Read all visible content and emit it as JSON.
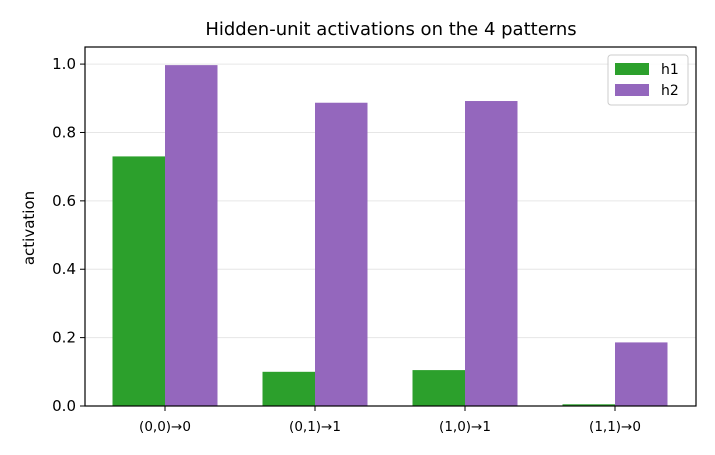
{
  "chart_data": {
    "type": "bar",
    "title": "Hidden-unit activations on the 4 patterns",
    "xlabel": "",
    "ylabel": "activation",
    "categories": [
      "(0,0)→0",
      "(0,1)→1",
      "(1,0)→1",
      "(1,1)→0"
    ],
    "series": [
      {
        "name": "h1",
        "color": "#2ca02c",
        "values": [
          0.73,
          0.1,
          0.105,
          0.005
        ]
      },
      {
        "name": "h2",
        "color": "#9467bd",
        "values": [
          0.997,
          0.887,
          0.892,
          0.186
        ]
      }
    ],
    "ylim": [
      0,
      1.05
    ],
    "yticks": [
      0.0,
      0.2,
      0.4,
      0.6,
      0.8,
      1.0
    ],
    "ytick_labels": [
      "0.0",
      "0.2",
      "0.4",
      "0.6",
      "0.8",
      "1.0"
    ],
    "grid": "horizontal",
    "legend_position": "top-right"
  }
}
